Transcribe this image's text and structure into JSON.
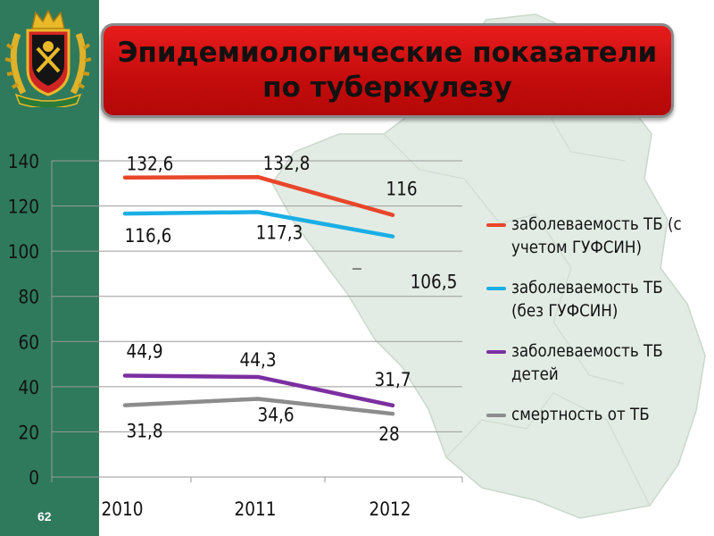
{
  "slide": {
    "title": "Эпидемиологические показатели\nпо туберкулезу",
    "page_number": "62"
  },
  "colors": {
    "sidebar": "#2f7a5c",
    "title_bg": "#d61414",
    "map": "#e3ece4"
  },
  "chart_data": {
    "type": "line",
    "categories": [
      "2010",
      "2011",
      "2012"
    ],
    "ylim": [
      0,
      140
    ],
    "yticks": [
      "0",
      "20",
      "40",
      "60",
      "80",
      "100",
      "120",
      "140"
    ],
    "grid": true,
    "legend_position": "right",
    "series": [
      {
        "name": "заболеваемость ТБ (с учетом ГУФСИН)",
        "color": "#e8462a",
        "values": [
          132.6,
          132.8,
          116
        ],
        "labels": [
          "132,6",
          "132,8",
          "116"
        ]
      },
      {
        "name": "заболеваемость ТБ (без ГУФСИН)",
        "color": "#1aaee5",
        "values": [
          116.6,
          117.3,
          106.5
        ],
        "labels": [
          "116,6",
          "117,3",
          "106,5"
        ]
      },
      {
        "name": "заболеваемость ТБ детей",
        "color": "#7b2fa0",
        "values": [
          44.9,
          44.3,
          31.7
        ],
        "labels": [
          "44,9",
          "44,3",
          "31,7"
        ]
      },
      {
        "name": "смертность от ТБ",
        "color": "#8c8c8c",
        "values": [
          31.8,
          34.6,
          28
        ],
        "labels": [
          "31,8",
          "34,6",
          "28"
        ]
      }
    ]
  }
}
